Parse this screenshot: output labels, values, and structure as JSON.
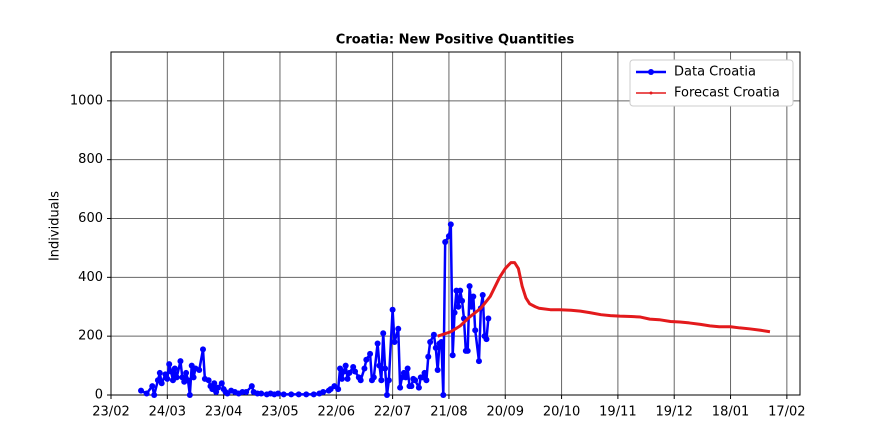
{
  "chart_data": {
    "type": "line",
    "title": "Croatia: New Positive Quantities",
    "ylabel": "Individuals",
    "xlim": [
      0,
      367
    ],
    "ylim": [
      0,
      1166
    ],
    "xticks": [
      {
        "value": 0,
        "label": "23/02"
      },
      {
        "value": 30,
        "label": "24/03"
      },
      {
        "value": 60,
        "label": "23/04"
      },
      {
        "value": 90,
        "label": "23/05"
      },
      {
        "value": 120,
        "label": "22/06"
      },
      {
        "value": 150,
        "label": "22/07"
      },
      {
        "value": 180,
        "label": "21/08"
      },
      {
        "value": 210,
        "label": "20/09"
      },
      {
        "value": 240,
        "label": "20/10"
      },
      {
        "value": 270,
        "label": "19/11"
      },
      {
        "value": 300,
        "label": "19/12"
      },
      {
        "value": 330,
        "label": "18/01"
      },
      {
        "value": 360,
        "label": "17/02"
      }
    ],
    "yticks": [
      0,
      200,
      400,
      600,
      800,
      1000
    ],
    "grid": true,
    "legend": "upper right",
    "series": [
      {
        "name": "Data Croatia",
        "color": "#0000ff",
        "marker": true,
        "x": [
          16,
          19,
          22,
          23,
          25,
          26,
          27,
          29,
          30,
          31,
          32,
          33,
          34,
          35,
          37,
          38,
          39,
          40,
          41,
          42,
          43,
          44,
          45,
          47,
          49,
          50,
          52,
          53,
          54,
          55,
          56,
          57,
          59,
          60,
          61,
          62,
          64,
          66,
          68,
          70,
          72,
          75,
          76,
          78,
          80,
          83,
          85,
          87,
          89,
          92,
          96,
          100,
          104,
          108,
          111,
          113,
          116,
          117,
          119,
          121,
          122,
          123,
          124,
          125,
          126,
          127,
          129,
          130,
          132,
          133,
          135,
          136,
          138,
          139,
          140,
          142,
          143,
          144,
          145,
          146,
          147,
          148,
          150,
          151,
          153,
          154,
          155,
          156,
          157,
          158,
          159,
          160,
          161,
          162,
          164,
          165,
          166,
          167,
          168,
          169,
          170,
          172,
          173,
          174,
          175,
          176,
          177,
          178,
          180,
          181,
          182,
          183,
          184,
          185,
          186,
          187,
          188,
          189,
          190,
          191,
          192,
          193,
          194,
          196,
          197,
          198,
          199,
          200,
          201
        ],
        "values": [
          15,
          5,
          30,
          0,
          50,
          75,
          40,
          70,
          55,
          105,
          80,
          50,
          90,
          60,
          115,
          60,
          45,
          75,
          50,
          0,
          100,
          60,
          90,
          85,
          155,
          55,
          50,
          30,
          20,
          40,
          10,
          25,
          40,
          20,
          10,
          5,
          15,
          10,
          5,
          10,
          10,
          30,
          10,
          5,
          5,
          2,
          5,
          2,
          5,
          2,
          2,
          2,
          2,
          2,
          5,
          10,
          15,
          20,
          30,
          20,
          90,
          55,
          80,
          100,
          55,
          75,
          95,
          80,
          60,
          50,
          90,
          120,
          140,
          50,
          60,
          175,
          100,
          50,
          210,
          90,
          0,
          50,
          290,
          180,
          225,
          25,
          60,
          75,
          60,
          90,
          30,
          30,
          55,
          50,
          25,
          60,
          60,
          75,
          50,
          130,
          180,
          205,
          160,
          85,
          175,
          180,
          0,
          520,
          540,
          580,
          135,
          280,
          355,
          300,
          355,
          320,
          260,
          150,
          150,
          370,
          300,
          335,
          220,
          115,
          295,
          340,
          200,
          190,
          260
        ]
      },
      {
        "name": "Forecast Croatia",
        "color": "#e31a1c",
        "marker": false,
        "x": [
          174,
          181,
          186,
          191,
          197,
          202,
          207,
          210,
          213,
          215,
          217,
          219,
          221,
          223,
          226,
          228,
          234,
          239,
          245,
          250,
          255,
          261,
          266,
          271,
          277,
          282,
          287,
          292,
          298,
          303,
          308,
          314,
          319,
          324,
          330,
          335,
          340,
          346,
          351
        ],
        "values": [
          200,
          215,
          235,
          265,
          295,
          335,
          400,
          430,
          450,
          450,
          430,
          370,
          330,
          310,
          300,
          295,
          290,
          290,
          288,
          285,
          280,
          273,
          270,
          268,
          267,
          265,
          258,
          256,
          250,
          248,
          245,
          240,
          235,
          232,
          232,
          228,
          225,
          220,
          215
        ]
      }
    ]
  }
}
